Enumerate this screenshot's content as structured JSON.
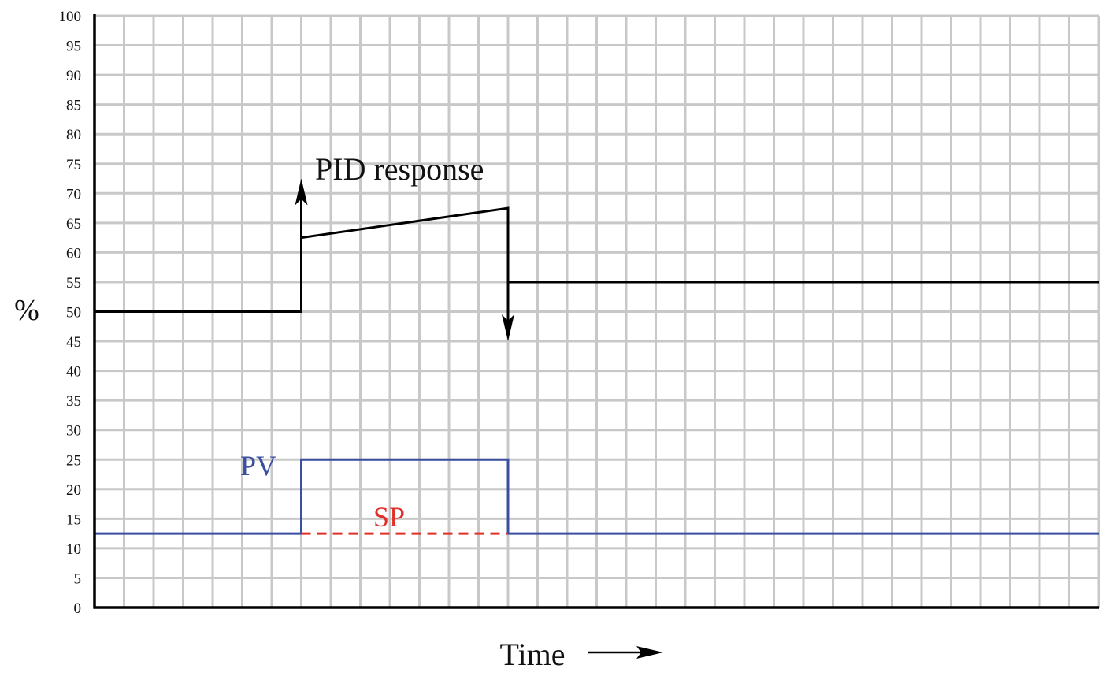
{
  "chart_data": {
    "type": "line",
    "title": "",
    "xlabel": "Time",
    "ylabel": "%",
    "ylim": [
      0,
      100
    ],
    "yticks": [
      0,
      5,
      10,
      15,
      20,
      25,
      30,
      35,
      40,
      45,
      50,
      55,
      60,
      65,
      70,
      75,
      80,
      85,
      90,
      95,
      100
    ],
    "x_units": 34,
    "grid": true,
    "annotations": [
      {
        "text": "PID response",
        "x": 7.5,
        "y": 74,
        "color": "#000000"
      },
      {
        "text": "PV",
        "x": 5.8,
        "y": 22.5,
        "color": "#3b4fa0"
      },
      {
        "text": "SP",
        "x": 10.2,
        "y": 15,
        "color": "#e0302a"
      }
    ],
    "series": [
      {
        "name": "PID response",
        "color": "#000000",
        "points": [
          [
            0,
            50
          ],
          [
            7,
            50
          ],
          [
            7,
            62.5
          ],
          [
            14,
            67.5
          ],
          [
            14,
            55
          ],
          [
            34,
            55
          ]
        ],
        "arrows": [
          {
            "x": 7,
            "from": 62.5,
            "to": 72.5,
            "direction": "up"
          },
          {
            "x": 14,
            "from": 55,
            "to": 45,
            "direction": "down"
          }
        ]
      },
      {
        "name": "PV",
        "color": "#3b4fa0",
        "points": [
          [
            0,
            12.5
          ],
          [
            7,
            12.5
          ],
          [
            7,
            25
          ],
          [
            14,
            25
          ],
          [
            14,
            12.5
          ],
          [
            34,
            12.5
          ]
        ]
      },
      {
        "name": "SP",
        "color": "#e0302a",
        "style": "dashed",
        "points": [
          [
            7,
            12.5
          ],
          [
            14,
            12.5
          ]
        ]
      }
    ]
  },
  "labels": {
    "y_axis": "%",
    "x_axis": "Time",
    "pid": "PID response",
    "pv": "PV",
    "sp": "SP"
  }
}
